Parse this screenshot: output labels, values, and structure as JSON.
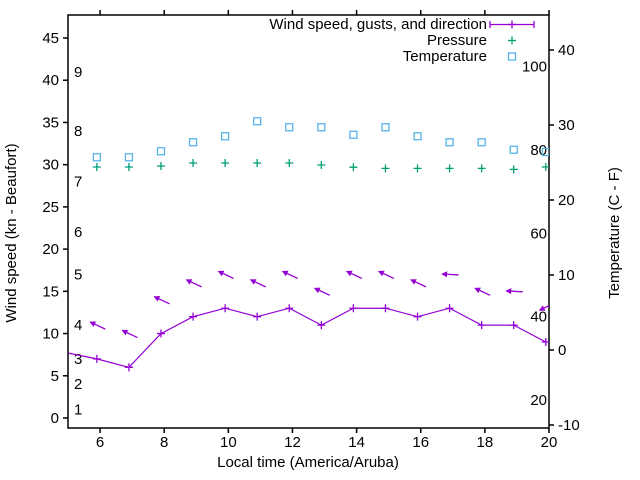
{
  "chart_data": {
    "type": "line",
    "title": "",
    "xlabel": "Local time (America/Aruba)",
    "ylabel_left": "Wind speed (kn - Beaufort)",
    "ylabel_right": "Temperature (C - F)",
    "grid": "off",
    "x_range": [
      5,
      20
    ],
    "x_ticks": [
      6,
      8,
      10,
      12,
      14,
      16,
      18,
      20
    ],
    "left_axis_knots": {
      "ticks": [
        0,
        5,
        10,
        15,
        20,
        25,
        30,
        35,
        40,
        45
      ],
      "range_shown": [
        0,
        45
      ]
    },
    "beaufort_scale": {
      "labels": [
        1,
        2,
        3,
        4,
        5,
        6,
        7,
        8,
        9
      ],
      "knots_anchor": [
        1,
        4,
        7,
        11,
        17,
        22,
        28,
        34,
        41
      ]
    },
    "right_axis_celsius": {
      "ticks": [
        -10,
        0,
        10,
        20,
        30,
        40
      ]
    },
    "fahrenheit_scale": {
      "labels": [
        20,
        40,
        60,
        80,
        100
      ]
    },
    "legend": {
      "position": "top-right-inside",
      "entries": [
        {
          "label": "Wind speed, gusts, and direction",
          "marker": "line-with-plus",
          "color": "#9400d3"
        },
        {
          "label": "Pressure",
          "marker": "plus",
          "color": "#009e73"
        },
        {
          "label": "Temperature",
          "marker": "open-square",
          "color": "#56b4e9"
        }
      ]
    },
    "x_hours": [
      5.9,
      6.9,
      7.9,
      8.9,
      9.9,
      10.9,
      11.9,
      12.9,
      13.9,
      14.9,
      15.9,
      16.9,
      17.9,
      18.9,
      19.9
    ],
    "series": [
      {
        "name": "Wind speed, gusts, and direction",
        "color": "#9400d3",
        "style": "line+points+direction-vectors",
        "edge_entry": {
          "x": 5.0,
          "kn": 7.7
        },
        "wind_speed_kn": [
          7,
          6,
          10,
          12,
          13,
          12,
          13,
          11,
          13,
          13,
          12,
          13,
          11,
          11,
          9
        ],
        "gust_kn": [
          11,
          10,
          14,
          16,
          17,
          16,
          17,
          15,
          17,
          17,
          16,
          17,
          15,
          15,
          13
        ],
        "gust_arrow_tilt": [
          "up-left",
          "up-left",
          "up-left",
          "up-left",
          "up-left",
          "up-left",
          "up-left",
          "up-left",
          "up-left",
          "up-left",
          "up-left",
          "left",
          "up-left",
          "left",
          "down-left"
        ]
      },
      {
        "name": "Pressure",
        "color": "#009e73",
        "style": "points",
        "pressure_inHg": [
          29.72,
          29.72,
          29.84,
          30.2,
          30.2,
          30.2,
          30.2,
          29.96,
          29.7,
          29.56,
          29.56,
          29.56,
          29.56,
          29.44,
          29.72
        ]
      },
      {
        "name": "Temperature",
        "color": "#56b4e9",
        "style": "points",
        "temperature_C": [
          25.7,
          25.7,
          26.5,
          27.7,
          28.5,
          30.5,
          29.7,
          29.7,
          28.7,
          29.7,
          28.5,
          27.7,
          27.7,
          26.7,
          26.4
        ]
      }
    ]
  }
}
